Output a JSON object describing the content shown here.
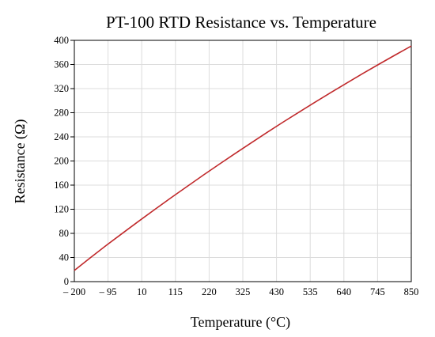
{
  "chart_data": {
    "type": "line",
    "title": "PT-100 RTD Resistance vs. Temperature",
    "xlabel": "Temperature (°C)",
    "ylabel": "Resistance (Ω)",
    "xlim": [
      -200,
      850
    ],
    "ylim": [
      0,
      400
    ],
    "x_ticks": [
      -200,
      -95,
      10,
      115,
      220,
      325,
      430,
      535,
      640,
      745,
      850
    ],
    "x_tick_labels": [
      "– 200",
      "– 95",
      "10",
      "115",
      "220",
      "325",
      "430",
      "535",
      "640",
      "745",
      "850"
    ],
    "y_ticks": [
      0,
      40,
      80,
      120,
      160,
      200,
      240,
      280,
      320,
      360,
      400
    ],
    "y_tick_labels": [
      "0",
      "40",
      "80",
      "120",
      "160",
      "200",
      "240",
      "280",
      "320",
      "360",
      "400"
    ],
    "grid": true,
    "legend": "none",
    "line_color": "#c0292b",
    "series": [
      {
        "x": [
          -200,
          -150,
          -100,
          -50,
          0,
          50,
          100,
          150,
          200,
          250,
          300,
          350,
          400,
          450,
          500,
          550,
          600,
          650,
          700,
          750,
          800,
          850
        ],
        "values": [
          18.5,
          39.7,
          60.3,
          80.3,
          100.0,
          119.4,
          138.5,
          157.3,
          175.9,
          194.1,
          212.1,
          229.7,
          247.1,
          264.2,
          280.9,
          297.5,
          313.7,
          329.6,
          345.3,
          360.6,
          375.7,
          390.5
        ]
      }
    ]
  }
}
